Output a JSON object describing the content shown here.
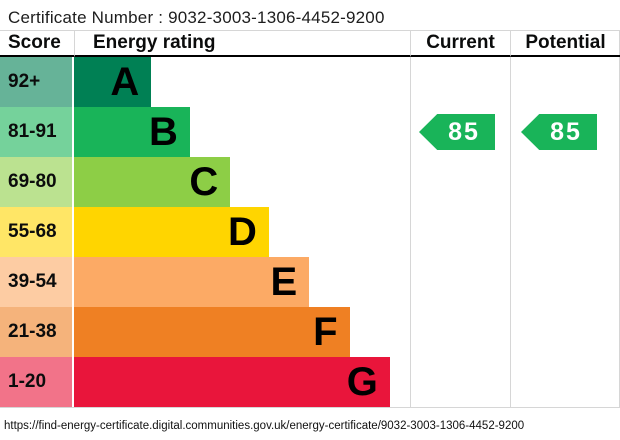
{
  "title": "Certificate Number : 9032-3003-1306-4452-9200",
  "table_header": {
    "score": "Score",
    "rating": "Energy rating",
    "current": "Current",
    "potential": "Potential"
  },
  "chart_data": {
    "type": "bar",
    "title": "Energy rating",
    "categories": [
      "A",
      "B",
      "C",
      "D",
      "E",
      "F",
      "G"
    ],
    "bands": [
      {
        "range": "92+",
        "letter": "A",
        "bar_color": "#008054",
        "score_color": "#66b398",
        "bar_width": "23%"
      },
      {
        "range": "81-91",
        "letter": "B",
        "bar_color": "#19b459",
        "score_color": "#75d29b",
        "bar_width": "34.5%"
      },
      {
        "range": "69-80",
        "letter": "C",
        "bar_color": "#8dce46",
        "score_color": "#bbe290",
        "bar_width": "46.5%"
      },
      {
        "range": "55-68",
        "letter": "D",
        "bar_color": "#ffd500",
        "score_color": "#ffe666",
        "bar_width": "58%"
      },
      {
        "range": "39-54",
        "letter": "E",
        "bar_color": "#fcaa65",
        "score_color": "#fdcca3",
        "bar_width": "70%"
      },
      {
        "range": "21-38",
        "letter": "F",
        "bar_color": "#ef8023",
        "score_color": "#f5b37b",
        "bar_width": "82%"
      },
      {
        "range": "1-20",
        "letter": "G",
        "bar_color": "#e9153b",
        "score_color": "#f27389",
        "bar_width": "94%"
      }
    ],
    "current": {
      "value": 85,
      "band": "B",
      "arrow_color": "#19b459"
    },
    "potential": {
      "value": 85,
      "band": "B",
      "arrow_color": "#19b459"
    }
  },
  "footer_url": "https://find-energy-certificate.digital.communities.gov.uk/energy-certificate/9032-3003-1306-4452-9200"
}
